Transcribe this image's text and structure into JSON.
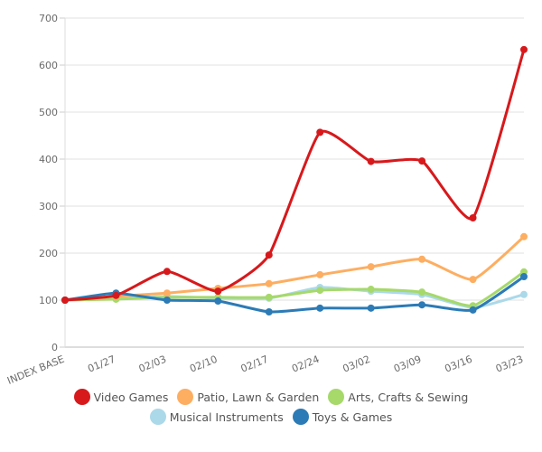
{
  "chart_data": {
    "type": "line",
    "title": "",
    "xlabel": "",
    "ylabel": "",
    "x": [
      "INDEX BASE",
      "01/27",
      "02/03",
      "02/10",
      "02/17",
      "02/24",
      "03/02",
      "03/09",
      "03/16",
      "03/23"
    ],
    "ylim": [
      0,
      700
    ],
    "yticks": [
      0,
      100,
      200,
      300,
      400,
      500,
      600,
      700
    ],
    "grid": true,
    "legend_position": "bottom",
    "series": [
      {
        "name": "Video Games",
        "color": "#d7191c",
        "values": [
          100,
          110,
          161,
          119,
          196,
          457,
          395,
          396,
          275,
          633
        ]
      },
      {
        "name": "Patio, Lawn & Garden",
        "color": "#fdae61",
        "values": [
          100,
          108,
          115,
          125,
          135,
          154,
          171,
          187,
          144,
          235
        ]
      },
      {
        "name": "Arts, Crafts & Sewing",
        "color": "#a6d96a",
        "values": [
          100,
          102,
          106,
          106,
          106,
          121,
          123,
          117,
          88,
          160
        ]
      },
      {
        "name": "Musical Instruments",
        "color": "#abd9e9",
        "values": [
          100,
          104,
          108,
          104,
          104,
          127,
          119,
          112,
          84,
          112
        ]
      },
      {
        "name": "Toys & Games",
        "color": "#2c7bb6",
        "values": [
          100,
          115,
          100,
          98,
          75,
          83,
          83,
          90,
          79,
          150
        ]
      }
    ]
  },
  "legend": {
    "row1": [
      0,
      1,
      2
    ],
    "row2": [
      3,
      4
    ]
  }
}
